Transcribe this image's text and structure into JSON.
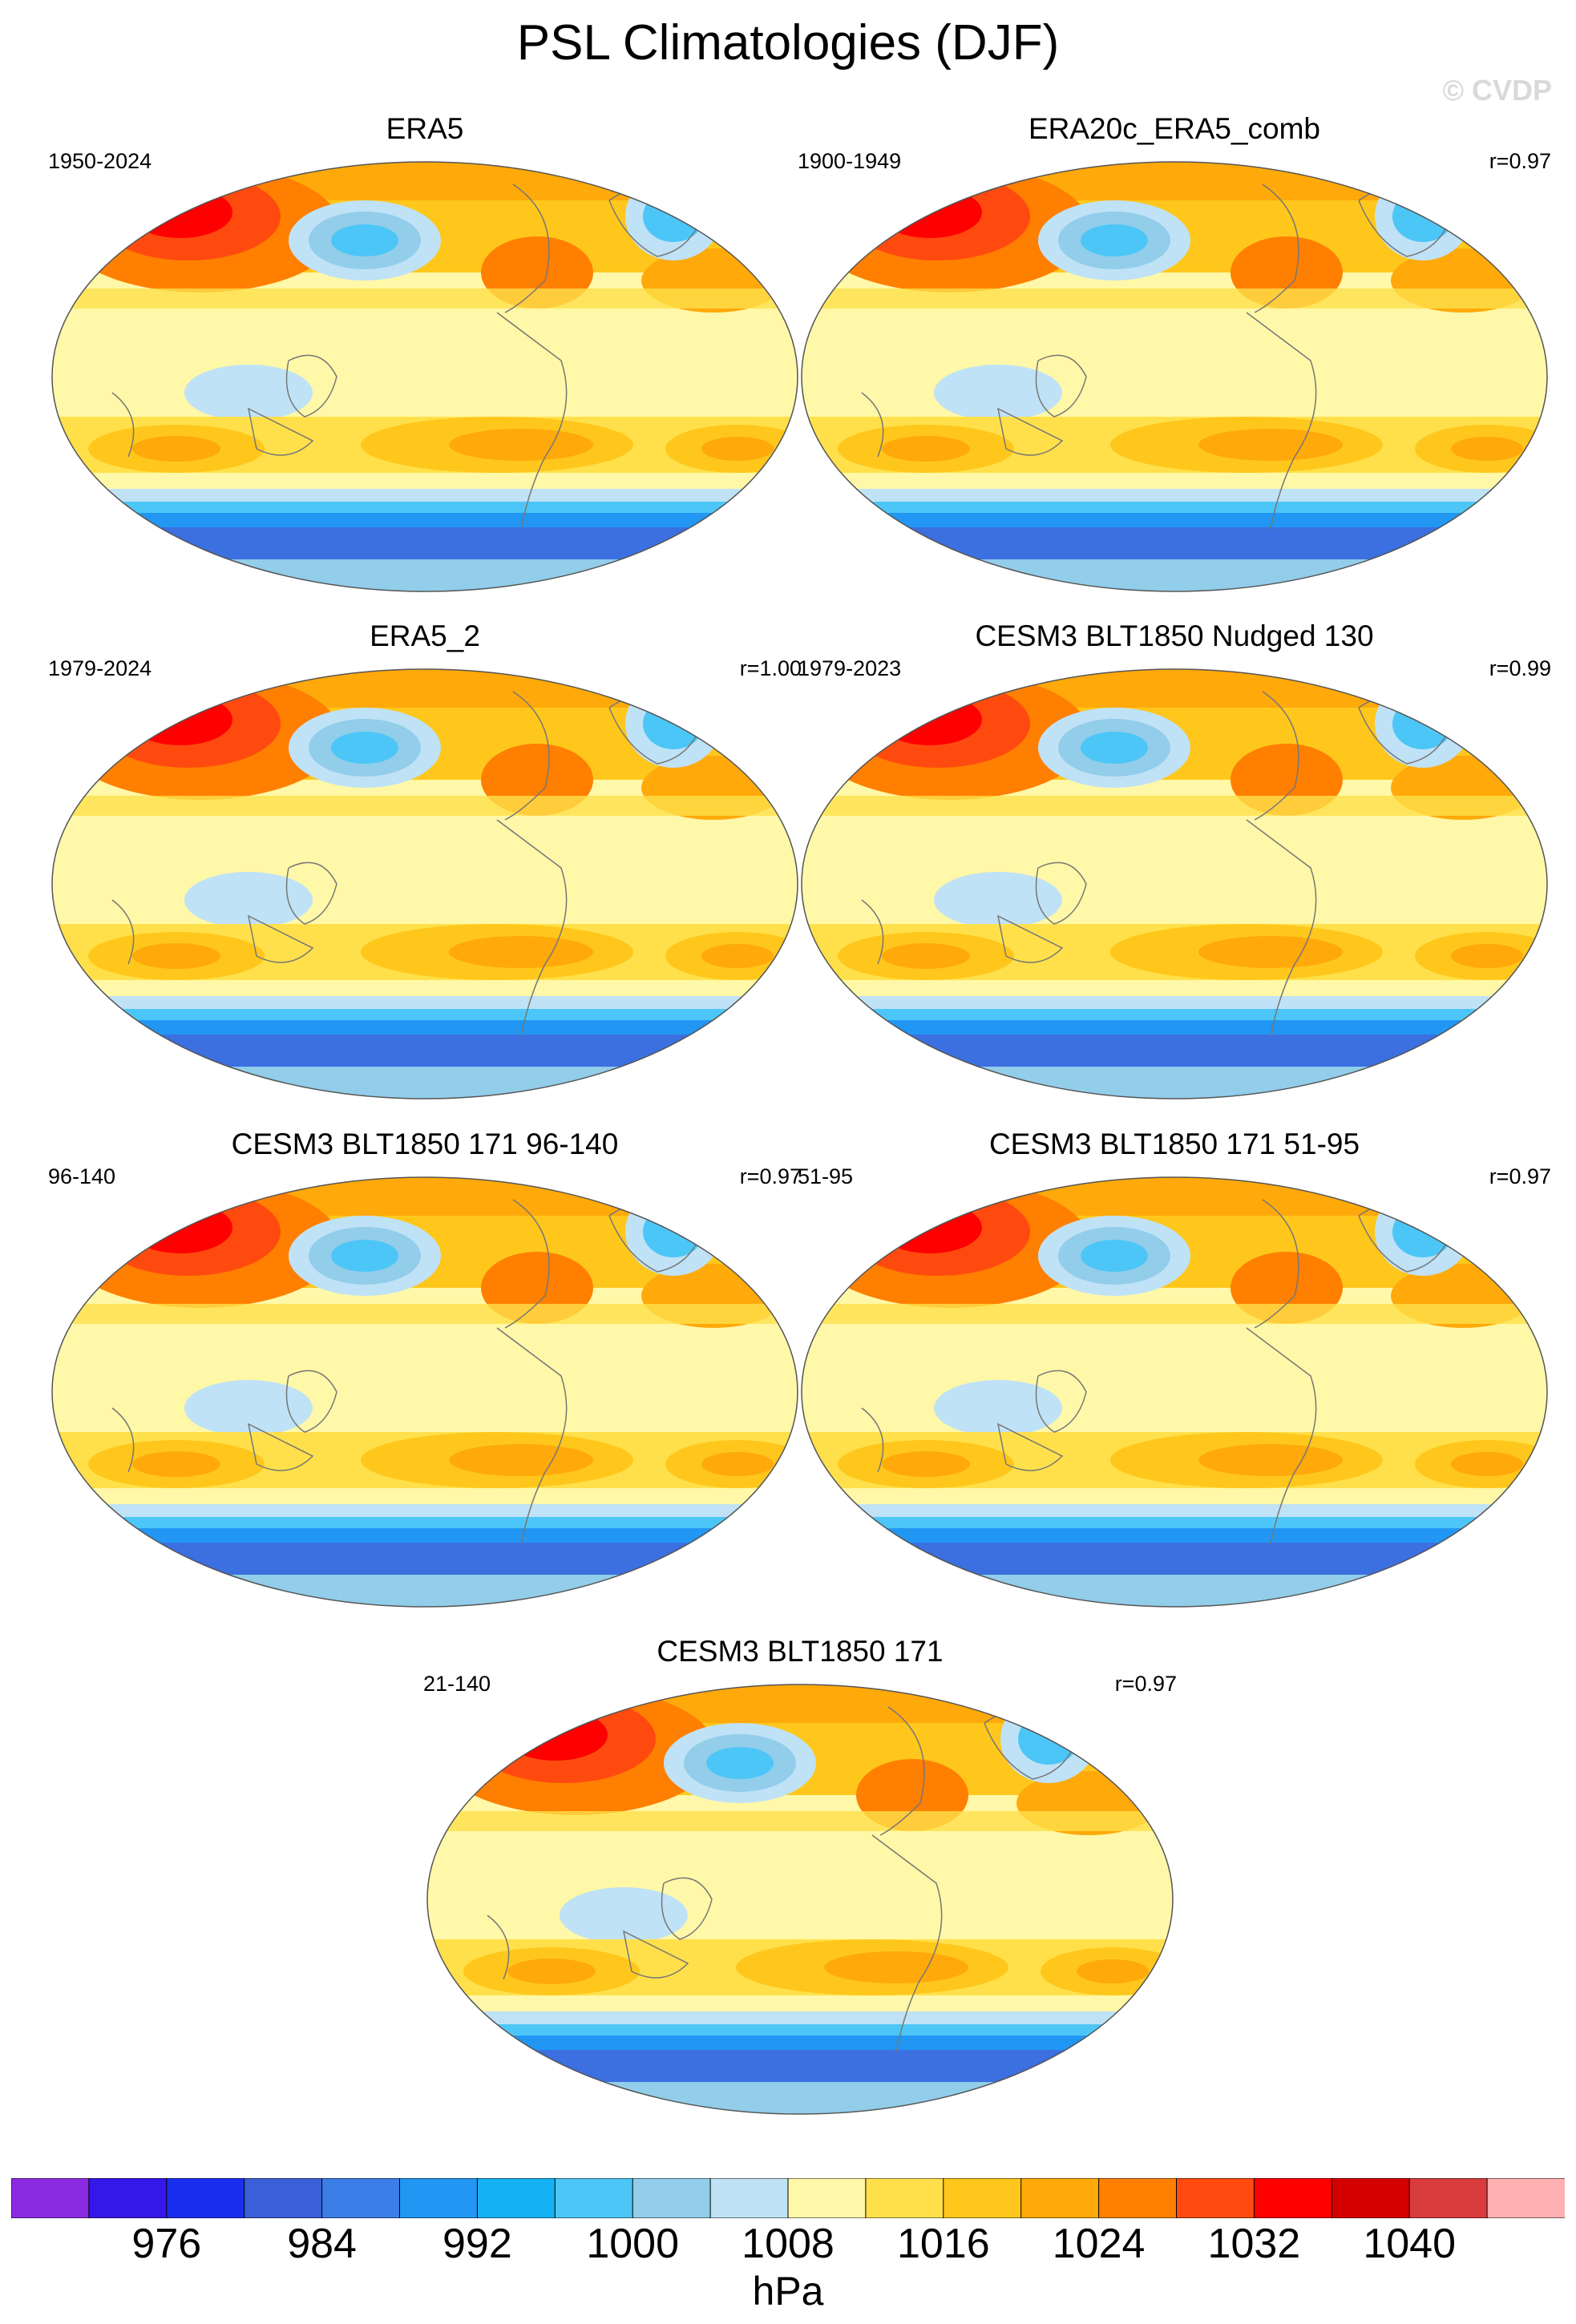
{
  "title": "PSL Climatologies (DJF)",
  "watermark": "© CVDP",
  "panels": [
    {
      "title": "ERA5",
      "period": "1950-2024",
      "corr": ""
    },
    {
      "title": "ERA20c_ERA5_comb",
      "period": "1900-1949",
      "corr": "r=0.97"
    },
    {
      "title": "ERA5_2",
      "period": "1979-2024",
      "corr": "r=1.00"
    },
    {
      "title": "CESM3 BLT1850 Nudged 130",
      "period": "1979-2023",
      "corr": "r=0.99"
    },
    {
      "title": "CESM3 BLT1850 171 96-140",
      "period": "96-140",
      "corr": "r=0.97"
    },
    {
      "title": "CESM3 BLT1850 171 51-95",
      "period": "51-95",
      "corr": "r=0.97"
    },
    {
      "title": "CESM3 BLT1850 171",
      "period": "21-140",
      "corr": "r=0.97"
    }
  ],
  "colorbar": {
    "colors": [
      "#8a2be2",
      "#3418e8",
      "#1a2ef0",
      "#3b5fd8",
      "#3c7ee8",
      "#2196f3",
      "#14b2f4",
      "#4cc6f6",
      "#92cdea",
      "#bfe2f6",
      "#fff8a8",
      "#ffe04a",
      "#ffc71c",
      "#ffa90a",
      "#ff7f00",
      "#ff4a0f",
      "#ff0000",
      "#d40000",
      "#d83c3c",
      "#ffb0b0"
    ],
    "labels": [
      "976",
      "984",
      "992",
      "1000",
      "1008",
      "1016",
      "1024",
      "1032",
      "1040"
    ],
    "units": "hPa"
  },
  "palette": {
    "deep_blue": "#3c6fe0",
    "blue": "#2196f3",
    "light_blue": "#bfe2f6",
    "pale_yellow": "#fff8a8",
    "yellow": "#ffe04a",
    "gold": "#ffc71c",
    "orange": "#ffa90a",
    "dark_orange": "#ff7f00",
    "red_orange": "#ff4a0f",
    "red": "#ff0000",
    "coast": "#777777"
  }
}
